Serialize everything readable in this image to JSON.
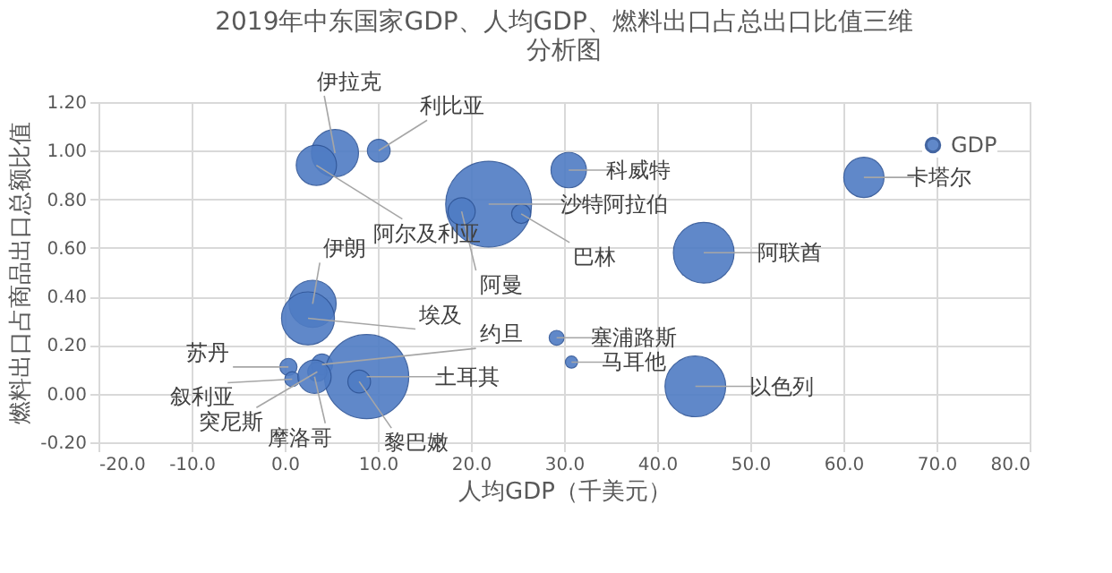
{
  "chart_data": {
    "type": "bubble",
    "title": "2019年中东国家GDP、人均GDP、燃料出口占总出口比值三维分析图",
    "xlabel": "人均GDP（千美元）",
    "ylabel": "燃料出口占商品出口总额比值",
    "x": [
      5.4,
      3.4,
      10.1,
      21.9,
      19.0,
      25.4,
      30.5,
      62.2,
      45.0,
      29.2,
      30.8,
      44.1,
      3.0,
      2.5,
      4.0,
      8.8,
      8.0,
      0.4,
      0.8,
      3.5,
      3.2
    ],
    "series": [
      {
        "name": "GDP",
        "color": "#4f7cc4",
        "values": [
          0.99,
          0.94,
          1.0,
          0.78,
          0.75,
          0.74,
          0.92,
          0.89,
          0.58,
          0.23,
          0.13,
          0.03,
          0.37,
          0.31,
          0.12,
          0.07,
          0.05,
          0.11,
          0.06,
          0.09,
          0.07
        ],
        "sizes": [
          0.3,
          0.22,
          0.07,
          1.0,
          0.1,
          0.05,
          0.17,
          0.22,
          0.5,
          0.03,
          0.02,
          0.5,
          0.3,
          0.38,
          0.06,
          0.96,
          0.07,
          0.04,
          0.03,
          0.05,
          0.15
        ]
      }
    ],
    "annotations": [
      {
        "text": "伊拉克",
        "x": 5.4,
        "y": 0.99
      },
      {
        "text": "阿尔及利亚",
        "x": 3.4,
        "y": 0.94
      },
      {
        "text": "利比亚",
        "x": 10.1,
        "y": 1.0
      },
      {
        "text": "沙特阿拉伯",
        "x": 21.9,
        "y": 0.78
      },
      {
        "text": "阿曼",
        "x": 19.0,
        "y": 0.75
      },
      {
        "text": "巴林",
        "x": 25.4,
        "y": 0.74
      },
      {
        "text": "科威特",
        "x": 30.5,
        "y": 0.92
      },
      {
        "text": "卡塔尔",
        "x": 62.2,
        "y": 0.89
      },
      {
        "text": "阿联酋",
        "x": 45.0,
        "y": 0.58
      },
      {
        "text": "塞浦路斯",
        "x": 29.2,
        "y": 0.23
      },
      {
        "text": "马耳他",
        "x": 30.8,
        "y": 0.13
      },
      {
        "text": "以色列",
        "x": 44.1,
        "y": 0.03
      },
      {
        "text": "伊朗",
        "x": 3.0,
        "y": 0.37
      },
      {
        "text": "埃及",
        "x": 2.5,
        "y": 0.31
      },
      {
        "text": "约旦",
        "x": 4.0,
        "y": 0.12
      },
      {
        "text": "土耳其",
        "x": 8.8,
        "y": 0.07
      },
      {
        "text": "黎巴嫩",
        "x": 8.0,
        "y": 0.05
      },
      {
        "text": "苏丹",
        "x": 0.4,
        "y": 0.11
      },
      {
        "text": "叙利亚",
        "x": 0.8,
        "y": 0.06
      },
      {
        "text": "突尼斯",
        "x": 3.5,
        "y": 0.09
      },
      {
        "text": "摩洛哥",
        "x": 3.2,
        "y": 0.07
      }
    ],
    "xlim": [
      -20,
      80
    ],
    "xticks": [
      {
        "value": -20,
        "label": "-20.0"
      },
      {
        "value": -10,
        "label": "-10.0"
      },
      {
        "value": 0,
        "label": "0.0"
      },
      {
        "value": 10,
        "label": "10.0"
      },
      {
        "value": 20,
        "label": "20.0"
      },
      {
        "value": 30,
        "label": "30.0"
      },
      {
        "value": 40,
        "label": "40.0"
      },
      {
        "value": 50,
        "label": "50.0"
      },
      {
        "value": 60,
        "label": "60.0"
      },
      {
        "value": 70,
        "label": "70.0"
      },
      {
        "value": 80,
        "label": "80.0"
      }
    ],
    "ylim": [
      -0.2,
      1.2
    ],
    "yticks": [
      {
        "value": -0.2,
        "label": "-0.20"
      },
      {
        "value": 0,
        "label": "0.00"
      },
      {
        "value": 0.2,
        "label": "0.20"
      },
      {
        "value": 0.4,
        "label": "0.40"
      },
      {
        "value": 0.6,
        "label": "0.60"
      },
      {
        "value": 0.8,
        "label": "0.80"
      },
      {
        "value": 1.0,
        "label": "1.00"
      },
      {
        "value": 1.2,
        "label": "1.20"
      }
    ],
    "grid": true,
    "legend": "top right"
  }
}
